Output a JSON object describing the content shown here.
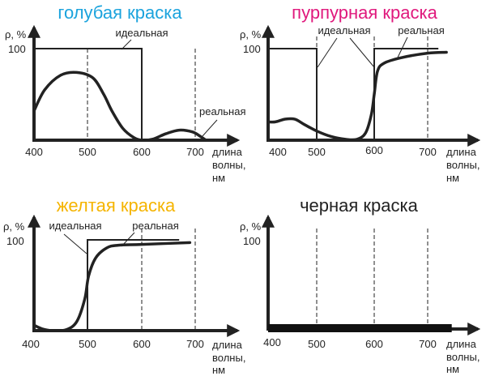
{
  "chart_data": [
    {
      "type": "line",
      "title": "голубая краска",
      "title_color": "#1ba3dd",
      "ylabel": "ρ, %",
      "xlabel": [
        "длина",
        "волны,",
        "нм"
      ],
      "xticks": [
        "400",
        "500",
        "600",
        "700"
      ],
      "yticks": [
        "100"
      ],
      "xlim": [
        400,
        780
      ],
      "ylim": [
        0,
        100
      ],
      "dashed_gridlines_at": [
        500,
        600,
        700
      ],
      "series": [
        {
          "name": "идеальная",
          "x": [
            400,
            400,
            600,
            600
          ],
          "y": [
            0,
            100,
            100,
            0
          ]
        },
        {
          "name": "реальная",
          "x": [
            400,
            420,
            450,
            480,
            510,
            530,
            545,
            565,
            585,
            600,
            620,
            645,
            670,
            695,
            710,
            720
          ],
          "y": [
            32,
            55,
            71,
            74,
            68,
            50,
            32,
            13,
            3,
            0,
            1,
            7,
            11,
            9,
            4,
            0
          ]
        }
      ]
    },
    {
      "type": "line",
      "title": "пурпурная краска",
      "title_color": "#e0197d",
      "ylabel": "ρ, %",
      "xlabel": [
        "длина",
        "волны,",
        "нм"
      ],
      "xticks": [
        "400",
        "500",
        "600",
        "700"
      ],
      "yticks": [
        "100"
      ],
      "xlim": [
        400,
        780
      ],
      "ylim": [
        0,
        100
      ],
      "dashed_gridlines_at": [
        500,
        600,
        700
      ],
      "series": [
        {
          "name": "идеальная",
          "segments": [
            {
              "x": [
                400,
                500,
                500
              ],
              "y": [
                100,
                100,
                0
              ]
            },
            {
              "x": [
                600,
                600,
                720
              ],
              "y": [
                0,
                100,
                100
              ]
            }
          ]
        },
        {
          "name": "реальная",
          "x": [
            400,
            415,
            435,
            455,
            475,
            500,
            525,
            550,
            570,
            585,
            595,
            600,
            606,
            618,
            650,
            700,
            735
          ],
          "y": [
            20,
            20,
            23,
            23,
            17,
            10,
            4,
            1,
            1,
            8,
            28,
            50,
            75,
            84,
            90,
            95,
            96
          ]
        }
      ]
    },
    {
      "type": "line",
      "title": "желтая краска",
      "title_color": "#f5b400",
      "ylabel": "ρ, %",
      "xlabel": [
        "длина",
        "волны,",
        "нм"
      ],
      "xticks": [
        "400",
        "500",
        "600",
        "700"
      ],
      "yticks": [
        "100"
      ],
      "xlim": [
        400,
        780
      ],
      "ylim": [
        0,
        100
      ],
      "dashed_gridlines_at": [
        600,
        700
      ],
      "series": [
        {
          "name": "идеальная",
          "x": [
            500,
            500,
            670
          ],
          "y": [
            0,
            100,
            100
          ]
        },
        {
          "name": "реальная",
          "x": [
            400,
            415,
            435,
            460,
            480,
            495,
            502,
            515,
            535,
            555,
            600,
            690
          ],
          "y": [
            6,
            2,
            0,
            1,
            10,
            35,
            60,
            80,
            91,
            94,
            95,
            97
          ]
        }
      ]
    },
    {
      "type": "line",
      "title": "черная краска",
      "title_color": "#222222",
      "ylabel": "ρ, %",
      "xlabel": [
        "длина",
        "волны,",
        "нм"
      ],
      "xticks": [
        "400",
        "500",
        "600",
        "700"
      ],
      "yticks": [
        "100"
      ],
      "xlim": [
        400,
        780
      ],
      "ylim": [
        0,
        100
      ],
      "dashed_gridlines_at": [
        500,
        600,
        700
      ],
      "series": [
        {
          "name": "",
          "x": [
            400,
            745
          ],
          "y": [
            0,
            0
          ]
        }
      ]
    }
  ]
}
